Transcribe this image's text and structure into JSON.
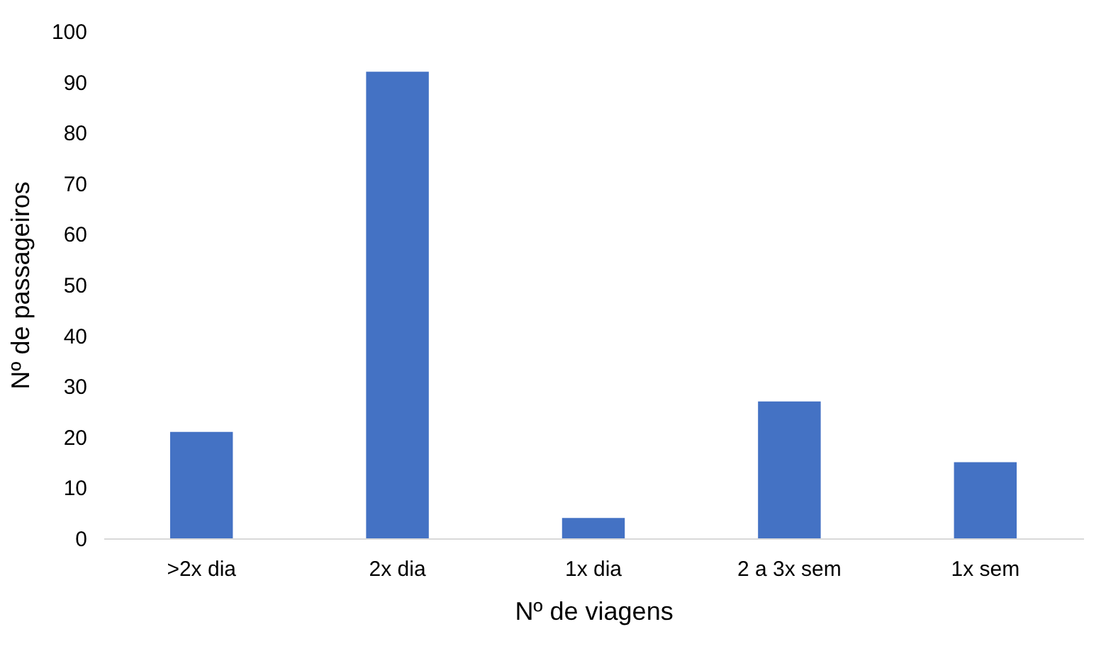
{
  "chart_data": {
    "type": "bar",
    "xlabel": "Nº de viagens",
    "ylabel": "Nº de passageiros",
    "categories": [
      ">2x dia",
      "2x dia",
      "1x dia",
      "2 a 3x sem",
      "1x sem"
    ],
    "values": [
      21,
      92,
      4,
      27,
      15
    ],
    "color": "#4472c4",
    "ylim": [
      0,
      100
    ],
    "yticks": [
      0,
      10,
      20,
      30,
      40,
      50,
      60,
      70,
      80,
      90,
      100
    ],
    "grid": false
  }
}
